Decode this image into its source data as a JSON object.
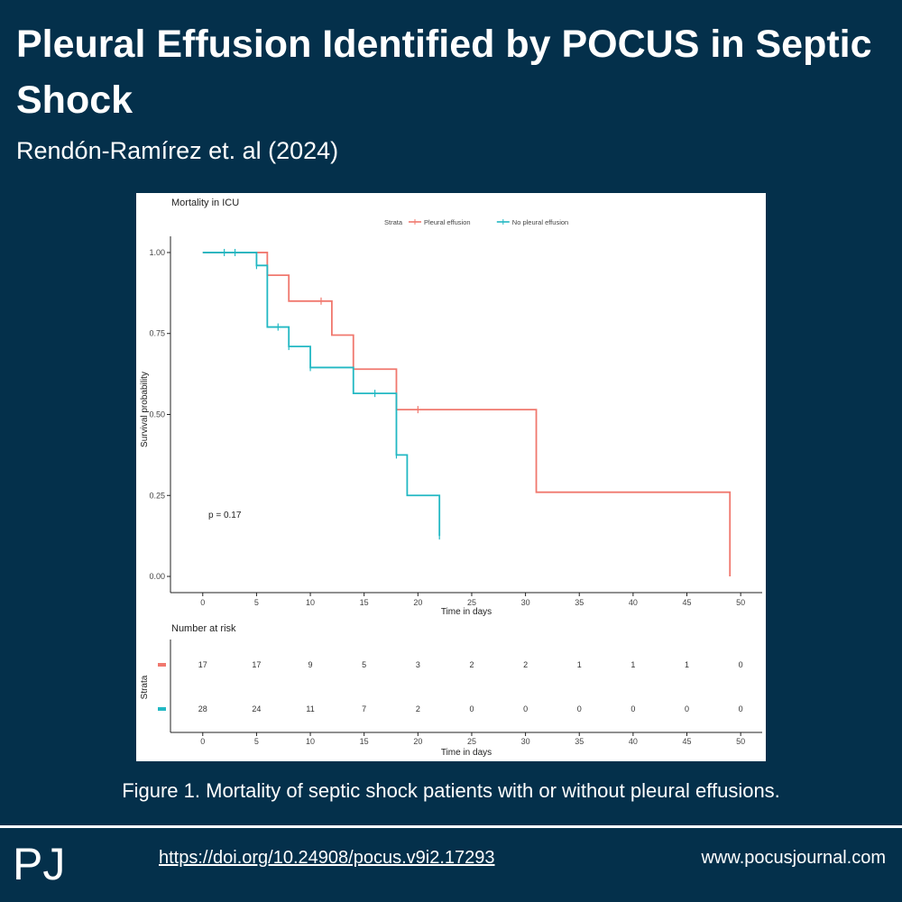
{
  "header": {
    "title": "Pleural Effusion Identified by POCUS in Septic Shock",
    "citation": "Rendón-Ramírez et. al (2024)"
  },
  "caption": "Figure 1. Mortality of septic shock patients with or without pleural effusions.",
  "footer": {
    "logo": "PJ",
    "doi": "https://doi.org/10.24908/pocus.v9i2.17293",
    "website": "www.pocusjournal.com"
  },
  "chart_data": {
    "type": "line",
    "subtype": "kaplan-meier step",
    "title": "Mortality in ICU",
    "xlabel": "Time in days",
    "ylabel": "Survival probability",
    "xlim": [
      -3,
      52
    ],
    "ylim": [
      -0.05,
      1.05
    ],
    "xticks": [
      "0",
      "5",
      "10",
      "15",
      "20",
      "25",
      "30",
      "35",
      "40",
      "45",
      "50"
    ],
    "yticks": [
      "0.00",
      "0.25",
      "0.50",
      "0.75",
      "1.00"
    ],
    "legend": {
      "title": "Strata",
      "placement": "top",
      "entries": [
        "Pleural effusion",
        "No pleural effusion"
      ]
    },
    "annotation": "p = 0.17",
    "grid": false,
    "series": [
      {
        "name": "Pleural effusion",
        "color": "#f0786e",
        "steps": [
          [
            0,
            1.0
          ],
          [
            6,
            0.93
          ],
          [
            8,
            0.85
          ],
          [
            12,
            0.745
          ],
          [
            14,
            0.64
          ],
          [
            18,
            0.515
          ],
          [
            31,
            0.26
          ],
          [
            49,
            0.0
          ]
        ],
        "end_x": 49,
        "censored": [
          [
            11,
            0.85
          ],
          [
            20,
            0.515
          ]
        ]
      },
      {
        "name": "No pleural effusion",
        "color": "#22b8c3",
        "steps": [
          [
            0,
            1.0
          ],
          [
            5,
            0.96
          ],
          [
            6,
            0.77
          ],
          [
            8,
            0.71
          ],
          [
            10,
            0.645
          ],
          [
            14,
            0.565
          ],
          [
            18,
            0.375
          ],
          [
            19,
            0.25
          ],
          [
            22,
            0.125
          ]
        ],
        "end_x": 22,
        "censored": [
          [
            2,
            1.0
          ],
          [
            3,
            1.0
          ],
          [
            5,
            0.96
          ],
          [
            7,
            0.77
          ],
          [
            8,
            0.71
          ],
          [
            10,
            0.645
          ],
          [
            16,
            0.565
          ],
          [
            18,
            0.375
          ],
          [
            22,
            0.125
          ]
        ]
      }
    ],
    "risk_table": {
      "title": "Number at risk",
      "ylabel": "Strata",
      "xlabel": "Time in days",
      "times": [
        0,
        5,
        10,
        15,
        20,
        25,
        30,
        35,
        40,
        45,
        50
      ],
      "rows": [
        {
          "color": "#f0786e",
          "values": [
            "17",
            "17",
            "9",
            "5",
            "3",
            "2",
            "2",
            "1",
            "1",
            "1",
            "0"
          ]
        },
        {
          "color": "#22b8c3",
          "values": [
            "28",
            "24",
            "11",
            "7",
            "2",
            "0",
            "0",
            "0",
            "0",
            "0",
            "0"
          ]
        }
      ]
    }
  }
}
